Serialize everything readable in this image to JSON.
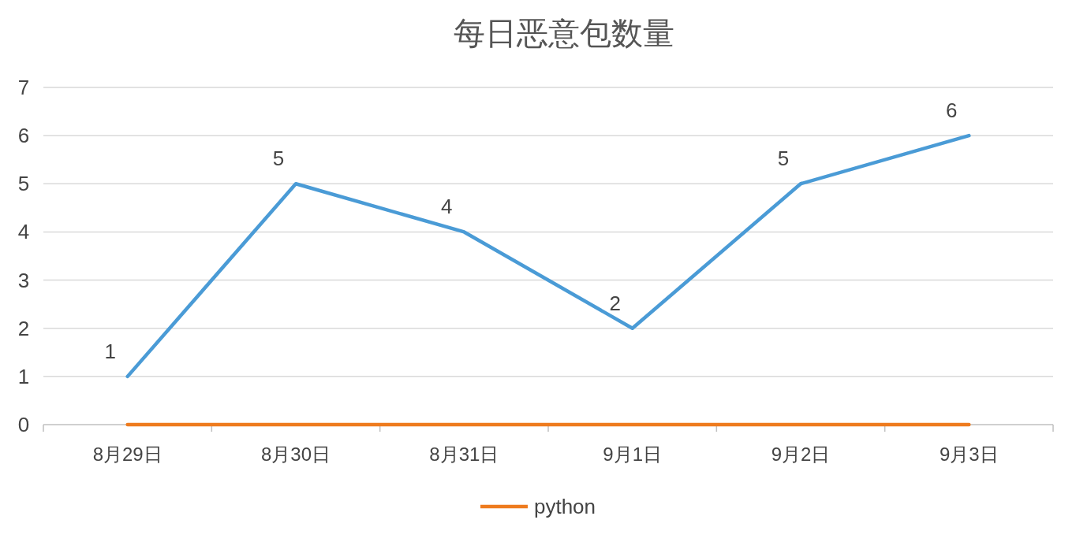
{
  "chart_data": {
    "type": "line",
    "title": "每日恶意包数量",
    "categories": [
      "8月29日",
      "8月30日",
      "8月31日",
      "9月1日",
      "9月2日",
      "9月3日"
    ],
    "series": [
      {
        "color": "#4a9bd6",
        "values": [
          1,
          5,
          4,
          2,
          5,
          6
        ],
        "value_labels": [
          "1",
          "5",
          "4",
          "2",
          "5",
          "6"
        ]
      },
      {
        "name": "python",
        "color": "#ee7b1e",
        "values": [
          0,
          0,
          0,
          0,
          0,
          0
        ]
      }
    ],
    "ylim": [
      0,
      7
    ],
    "yticks": [
      0,
      1,
      2,
      3,
      4,
      5,
      6,
      7
    ],
    "grid": "y",
    "legend": "bottom",
    "marker": "none",
    "line_style": "solid"
  }
}
